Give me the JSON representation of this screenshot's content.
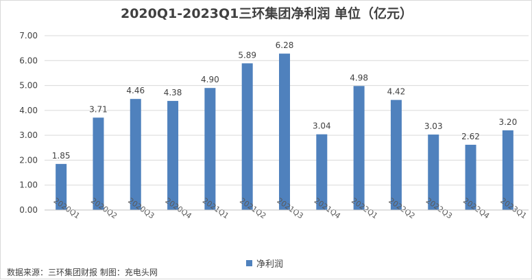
{
  "chart_data": {
    "type": "bar",
    "title": "2020Q1-2023Q1三环集团净利润 单位（亿元）",
    "categories": [
      "2020Q1",
      "2020Q2",
      "2020Q3",
      "2020Q4",
      "2021Q1",
      "2021Q2",
      "2021Q3",
      "2021Q4",
      "2022Q1",
      "2022Q2",
      "2022Q3",
      "2022Q4",
      "2023Q1"
    ],
    "series": [
      {
        "name": "净利润",
        "values": [
          1.85,
          3.71,
          4.46,
          4.38,
          4.9,
          5.89,
          6.28,
          3.04,
          4.98,
          4.42,
          3.03,
          2.62,
          3.2
        ]
      }
    ],
    "ylim": [
      0,
      7
    ],
    "yticks": [
      "0.00",
      "1.00",
      "2.00",
      "3.00",
      "4.00",
      "5.00",
      "6.00",
      "7.00"
    ],
    "data_labels": [
      "1.85",
      "3.71",
      "4.46",
      "4.38",
      "4.90",
      "5.89",
      "6.28",
      "3.04",
      "4.98",
      "4.42",
      "3.03",
      "2.62",
      "3.20"
    ],
    "grid": true,
    "legend_position": "bottom",
    "bar_color": "#4f81bd"
  },
  "source_note": "数据来源：三环集团财报 制图：充电头网"
}
